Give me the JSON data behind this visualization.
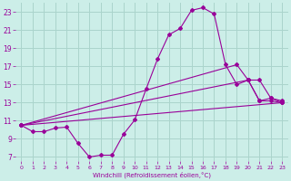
{
  "xlabel": "Windchill (Refroidissement éolien,°C)",
  "bg_color": "#cceee8",
  "grid_color": "#aad4cc",
  "line_color": "#990099",
  "xlim": [
    -0.5,
    23.5
  ],
  "ylim": [
    6.5,
    24.0
  ],
  "xticks": [
    0,
    1,
    2,
    3,
    4,
    5,
    6,
    7,
    8,
    9,
    10,
    11,
    12,
    13,
    14,
    15,
    16,
    17,
    18,
    19,
    20,
    21,
    22,
    23
  ],
  "yticks": [
    7,
    9,
    11,
    13,
    15,
    17,
    19,
    21,
    23
  ],
  "series1_x": [
    0,
    1,
    2,
    3,
    4,
    5,
    6,
    7,
    8,
    9,
    10,
    11,
    12,
    13,
    14,
    15,
    16,
    17,
    18,
    19,
    20,
    21,
    22,
    23
  ],
  "series1_y": [
    10.5,
    9.8,
    9.8,
    10.2,
    10.3,
    8.5,
    7.0,
    7.2,
    7.2,
    9.5,
    11.1,
    14.5,
    17.8,
    20.5,
    21.2,
    23.2,
    23.5,
    22.8,
    17.2,
    15.0,
    15.5,
    13.2,
    13.2,
    13.0
  ],
  "series2_x": [
    0,
    23
  ],
  "series2_y": [
    10.5,
    13.0
  ],
  "series3_x": [
    0,
    20,
    21,
    22,
    23
  ],
  "series3_y": [
    10.5,
    15.5,
    13.2,
    13.5,
    13.0
  ],
  "series4_x": [
    0,
    19,
    20,
    21,
    22,
    23
  ],
  "series4_y": [
    10.5,
    17.2,
    15.5,
    15.5,
    13.5,
    13.2
  ]
}
